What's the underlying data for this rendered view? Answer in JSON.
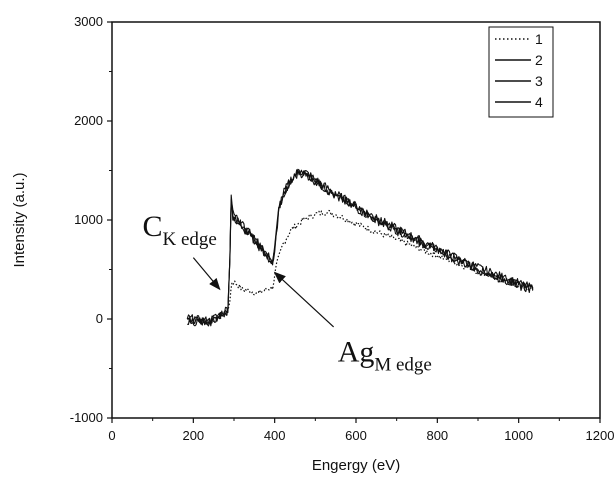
{
  "chart_data": {
    "type": "line",
    "title": "",
    "xlabel": "Engergy (eV)",
    "ylabel": "Intensity (a.u.)",
    "xlim": [
      0,
      1200
    ],
    "ylim": [
      -1000,
      3000
    ],
    "x_ticks": [
      "0",
      "200",
      "400",
      "600",
      "800",
      "1000",
      "1200"
    ],
    "y_ticks": [
      "-1000",
      "0",
      "1000",
      "2000",
      "3000"
    ],
    "legend_position": "top-right",
    "series": [
      {
        "name": "1",
        "style": "dotted",
        "points": [
          [
            185,
            0
          ],
          [
            210,
            -20
          ],
          [
            240,
            -30
          ],
          [
            270,
            30
          ],
          [
            285,
            60
          ],
          [
            290,
            200
          ],
          [
            295,
            380
          ],
          [
            305,
            360
          ],
          [
            320,
            300
          ],
          [
            340,
            280
          ],
          [
            360,
            260
          ],
          [
            380,
            300
          ],
          [
            395,
            320
          ],
          [
            405,
            550
          ],
          [
            420,
            750
          ],
          [
            440,
            900
          ],
          [
            470,
            1000
          ],
          [
            500,
            1060
          ],
          [
            530,
            1080
          ],
          [
            560,
            1040
          ],
          [
            600,
            960
          ],
          [
            650,
            880
          ],
          [
            700,
            800
          ],
          [
            750,
            720
          ],
          [
            800,
            640
          ],
          [
            850,
            560
          ],
          [
            900,
            480
          ],
          [
            950,
            400
          ],
          [
            1000,
            330
          ],
          [
            1035,
            290
          ]
        ]
      },
      {
        "name": "2",
        "style": "solid",
        "points": [
          [
            185,
            0
          ],
          [
            210,
            -20
          ],
          [
            240,
            -30
          ],
          [
            270,
            50
          ],
          [
            285,
            100
          ],
          [
            290,
            600
          ],
          [
            293,
            1250
          ],
          [
            297,
            1050
          ],
          [
            310,
            1000
          ],
          [
            330,
            900
          ],
          [
            350,
            800
          ],
          [
            370,
            700
          ],
          [
            385,
            620
          ],
          [
            395,
            580
          ],
          [
            400,
            700
          ],
          [
            410,
            1100
          ],
          [
            420,
            1250
          ],
          [
            440,
            1400
          ],
          [
            460,
            1490
          ],
          [
            480,
            1460
          ],
          [
            500,
            1400
          ],
          [
            540,
            1280
          ],
          [
            600,
            1130
          ],
          [
            650,
            1010
          ],
          [
            700,
            900
          ],
          [
            750,
            800
          ],
          [
            800,
            700
          ],
          [
            850,
            600
          ],
          [
            900,
            510
          ],
          [
            950,
            430
          ],
          [
            1000,
            350
          ],
          [
            1035,
            300
          ]
        ]
      },
      {
        "name": "3",
        "style": "solid",
        "points": [
          [
            185,
            10
          ],
          [
            210,
            -10
          ],
          [
            240,
            -20
          ],
          [
            270,
            60
          ],
          [
            285,
            110
          ],
          [
            290,
            620
          ],
          [
            293,
            1270
          ],
          [
            297,
            1070
          ],
          [
            310,
            1010
          ],
          [
            330,
            910
          ],
          [
            350,
            810
          ],
          [
            370,
            710
          ],
          [
            385,
            630
          ],
          [
            395,
            590
          ],
          [
            400,
            710
          ],
          [
            410,
            1110
          ],
          [
            420,
            1260
          ],
          [
            440,
            1410
          ],
          [
            460,
            1500
          ],
          [
            480,
            1470
          ],
          [
            500,
            1410
          ],
          [
            540,
            1290
          ],
          [
            600,
            1140
          ],
          [
            650,
            1020
          ],
          [
            700,
            910
          ],
          [
            750,
            810
          ],
          [
            800,
            710
          ],
          [
            850,
            610
          ],
          [
            900,
            520
          ],
          [
            950,
            440
          ],
          [
            1000,
            360
          ],
          [
            1035,
            310
          ]
        ]
      },
      {
        "name": "4",
        "style": "solid",
        "points": [
          [
            185,
            -10
          ],
          [
            210,
            -30
          ],
          [
            240,
            -40
          ],
          [
            270,
            40
          ],
          [
            285,
            90
          ],
          [
            290,
            580
          ],
          [
            293,
            1230
          ],
          [
            297,
            1030
          ],
          [
            310,
            990
          ],
          [
            330,
            890
          ],
          [
            350,
            790
          ],
          [
            370,
            690
          ],
          [
            385,
            610
          ],
          [
            395,
            570
          ],
          [
            400,
            690
          ],
          [
            410,
            1090
          ],
          [
            420,
            1240
          ],
          [
            440,
            1390
          ],
          [
            460,
            1480
          ],
          [
            480,
            1450
          ],
          [
            500,
            1390
          ],
          [
            540,
            1270
          ],
          [
            600,
            1120
          ],
          [
            650,
            1000
          ],
          [
            700,
            890
          ],
          [
            750,
            790
          ],
          [
            800,
            690
          ],
          [
            850,
            590
          ],
          [
            900,
            500
          ],
          [
            950,
            420
          ],
          [
            1000,
            340
          ],
          [
            1035,
            290
          ]
        ]
      }
    ],
    "annotations": [
      {
        "name": "c-k-edge",
        "main": "C",
        "sub": "K edge",
        "x": 75,
        "y": 840,
        "arrow_from": [
          200,
          620
        ],
        "arrow_to": [
          265,
          300
        ]
      },
      {
        "name": "ag-m-edge",
        "main": "Ag",
        "sub": "M edge",
        "x": 555,
        "y": -430,
        "arrow_from": [
          545,
          -80
        ],
        "arrow_to": [
          400,
          470
        ]
      }
    ]
  }
}
